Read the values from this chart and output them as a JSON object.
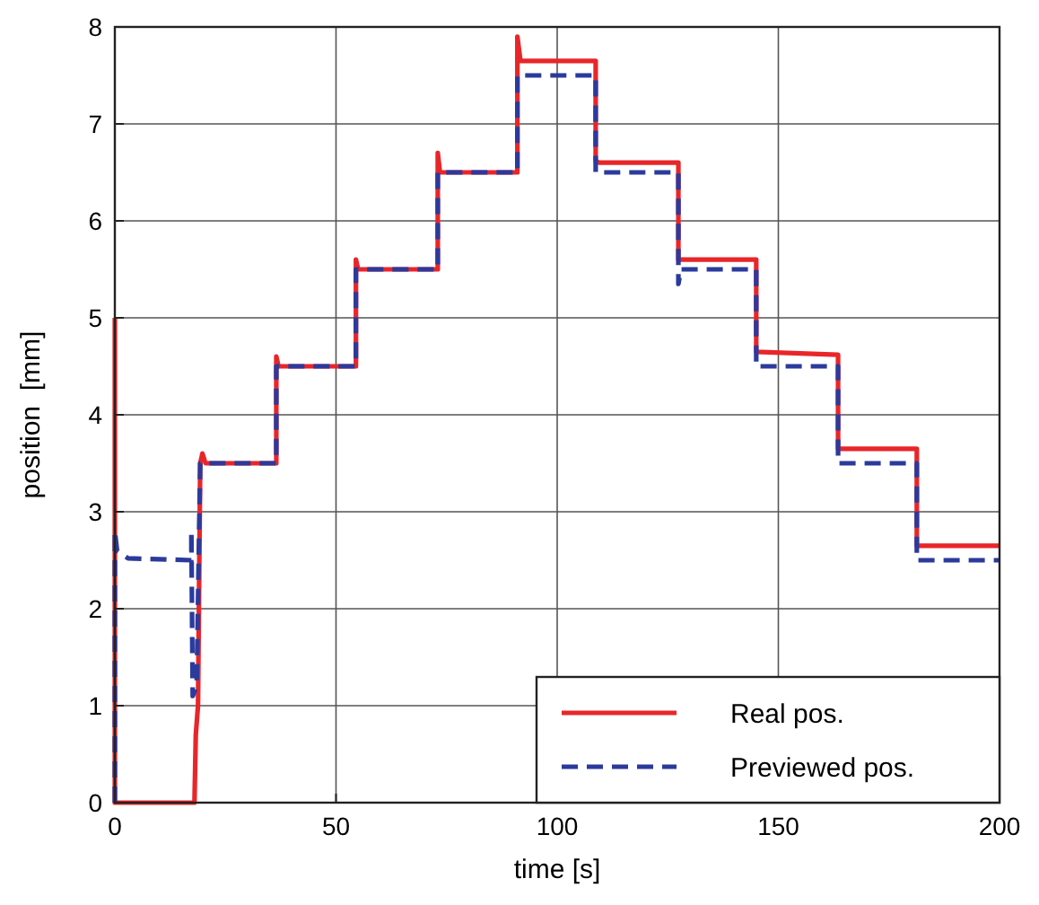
{
  "chart_data": {
    "type": "line",
    "xlabel": "time [s]",
    "ylabel": "position  [mm]",
    "xlim": [
      0,
      200
    ],
    "xticks": [
      0,
      50,
      100,
      150,
      200
    ],
    "ylim": [
      0,
      8
    ],
    "yticks": [
      0,
      1,
      2,
      3,
      4,
      5,
      6,
      7,
      8
    ],
    "grid": true,
    "legend": "bottom right",
    "series": [
      {
        "name": "Real pos.",
        "color": "#e8262a",
        "line_style": "solid",
        "x": [
          0,
          0,
          18,
          18.3,
          18.8,
          19.3,
          19.8,
          20.5,
          36.5,
          36.5,
          37,
          54.5,
          54.5,
          55,
          73,
          73,
          73.5,
          91,
          91,
          91.7,
          108.7,
          108.7,
          109.5,
          127.4,
          127.4,
          145,
          145,
          163.5,
          163.5,
          181.3,
          181.3,
          200
        ],
        "values": [
          5,
          0,
          0,
          0.7,
          1,
          3.5,
          3.6,
          3.5,
          3.5,
          4.6,
          4.5,
          4.5,
          5.6,
          5.5,
          5.5,
          6.7,
          6.5,
          6.5,
          7.9,
          7.65,
          7.65,
          6.62,
          6.6,
          6.6,
          5.6,
          5.6,
          4.65,
          4.62,
          3.65,
          3.65,
          2.65,
          2.65
        ]
      },
      {
        "name": "Previewed pos.",
        "color": "#2b3a9c",
        "line_style": "dashed",
        "x": [
          0,
          0,
          0.5,
          3,
          17.3,
          17.3,
          17.6,
          18.5,
          19.3,
          36.5,
          36.5,
          54.5,
          54.5,
          73,
          73,
          91,
          91,
          108.7,
          108.7,
          127.4,
          127.4,
          128,
          145,
          145,
          163.5,
          163.5,
          181.3,
          181.3,
          200
        ],
        "values": [
          0,
          2.8,
          2.6,
          2.52,
          2.5,
          2.8,
          1.1,
          1.2,
          3.5,
          3.5,
          4.5,
          4.5,
          5.5,
          5.5,
          6.5,
          6.5,
          7.5,
          7.5,
          6.5,
          6.5,
          5.35,
          5.5,
          5.5,
          4.5,
          4.5,
          3.5,
          3.5,
          2.5,
          2.5
        ]
      }
    ]
  }
}
